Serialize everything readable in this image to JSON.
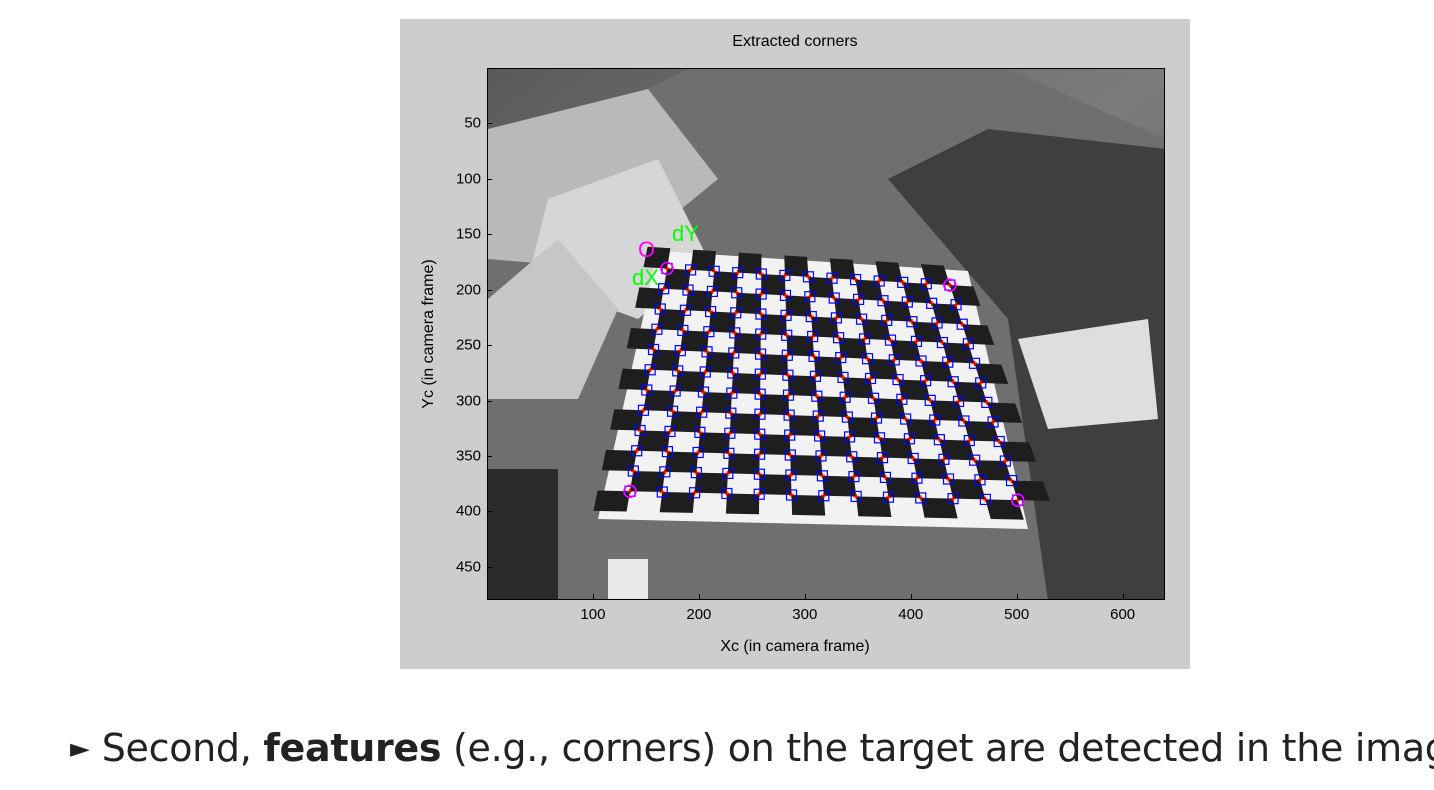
{
  "figure": {
    "title": "Extracted corners",
    "xlabel": "Xc (in camera frame)",
    "ylabel": "Yc (in camera frame)",
    "origin_label": "O",
    "dx_label": "dX",
    "dy_label": "dY",
    "colors": {
      "panel": "#cdcdcd",
      "corner_box": "#0000ff",
      "corner_cross": "#ff0000",
      "extreme_marker": "#ff00ff",
      "axis_labels": "#00ff00",
      "origin_label": "#ff00ff"
    }
  },
  "chart_data": {
    "type": "scatter",
    "title": "Extracted corners",
    "xlabel": "Xc (in camera frame)",
    "ylabel": "Yc (in camera frame)",
    "xlim": [
      0,
      640
    ],
    "ylim": [
      0,
      480
    ],
    "y_reversed": true,
    "xticks": [
      100,
      200,
      300,
      400,
      500,
      600
    ],
    "yticks": [
      50,
      100,
      150,
      200,
      250,
      300,
      350,
      400,
      450
    ],
    "grid": false,
    "background": "grayscale camera image of a checkerboard calibration target on a desk",
    "grid_corners": {
      "rows": 12,
      "cols": 13,
      "extreme_corners": [
        [
          169,
          180
        ],
        [
          436,
          195
        ],
        [
          134,
          381
        ],
        [
          500,
          389
        ]
      ]
    }
  },
  "caption": {
    "bullet": "►",
    "prefix": "Second, ",
    "bold": "features",
    "suffix": " (e.g., corners) on the target are detected in the images"
  }
}
